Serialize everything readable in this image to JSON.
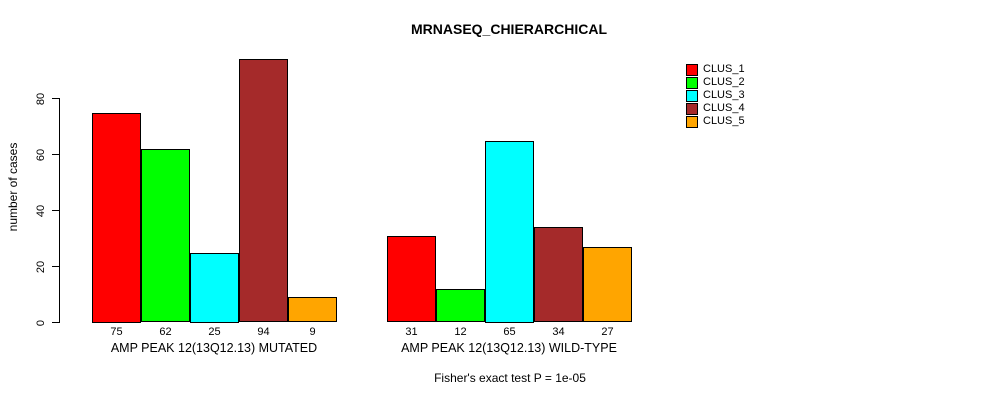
{
  "chart_data": {
    "type": "bar",
    "title": "MRNASEQ_CHIERARCHICAL",
    "ylabel": "number of cases",
    "ylim": [
      0,
      100
    ],
    "yticks": [
      0,
      20,
      40,
      60,
      80
    ],
    "grid": false,
    "legend_position": "top-right",
    "categories": [
      "AMP PEAK 12(13Q12.13) MUTATED",
      "AMP PEAK 12(13Q12.13) WILD-TYPE"
    ],
    "series": [
      {
        "name": "CLUS_1",
        "color": "#FF0000",
        "values": [
          75,
          31
        ]
      },
      {
        "name": "CLUS_2",
        "color": "#00FF00",
        "values": [
          62,
          12
        ]
      },
      {
        "name": "CLUS_3",
        "color": "#00FFFF",
        "values": [
          25,
          65
        ]
      },
      {
        "name": "CLUS_4",
        "color": "#A52A2A",
        "values": [
          94,
          34
        ]
      },
      {
        "name": "CLUS_5",
        "color": "#FFA500",
        "values": [
          9,
          27
        ]
      }
    ],
    "footnote": "Fisher's exact test P = 1e-05"
  }
}
